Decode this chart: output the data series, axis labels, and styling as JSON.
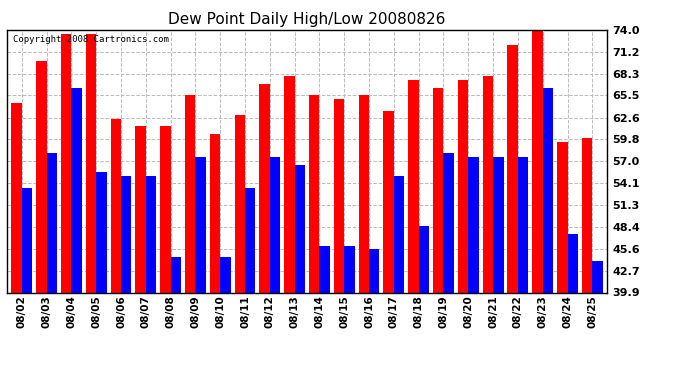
{
  "title": "Dew Point Daily High/Low 20080826",
  "copyright": "Copyright 2008 Cartronics.com",
  "dates": [
    "08/02",
    "08/03",
    "08/04",
    "08/05",
    "08/06",
    "08/07",
    "08/08",
    "08/09",
    "08/10",
    "08/11",
    "08/12",
    "08/13",
    "08/14",
    "08/15",
    "08/16",
    "08/17",
    "08/18",
    "08/19",
    "08/20",
    "08/21",
    "08/22",
    "08/23",
    "08/24",
    "08/25"
  ],
  "highs": [
    64.5,
    70.0,
    73.5,
    73.5,
    62.5,
    61.5,
    61.5,
    65.5,
    60.5,
    63.0,
    67.0,
    68.0,
    65.5,
    65.0,
    65.5,
    63.5,
    67.5,
    66.5,
    67.5,
    68.0,
    72.0,
    74.0,
    59.5,
    60.0
  ],
  "lows": [
    53.5,
    58.0,
    66.5,
    55.5,
    55.0,
    55.0,
    44.5,
    57.5,
    44.5,
    53.5,
    57.5,
    56.5,
    46.0,
    46.0,
    45.5,
    55.0,
    48.5,
    58.0,
    57.5,
    57.5,
    57.5,
    66.5,
    47.5,
    44.0
  ],
  "high_color": "#FF0000",
  "low_color": "#0000FF",
  "bg_color": "#FFFFFF",
  "grid_color": "#BBBBBB",
  "yticks": [
    39.9,
    42.7,
    45.6,
    48.4,
    51.3,
    54.1,
    57.0,
    59.8,
    62.6,
    65.5,
    68.3,
    71.2,
    74.0
  ],
  "ymin": 39.9,
  "ymax": 74.0,
  "bar_width": 0.42,
  "title_fontsize": 11
}
